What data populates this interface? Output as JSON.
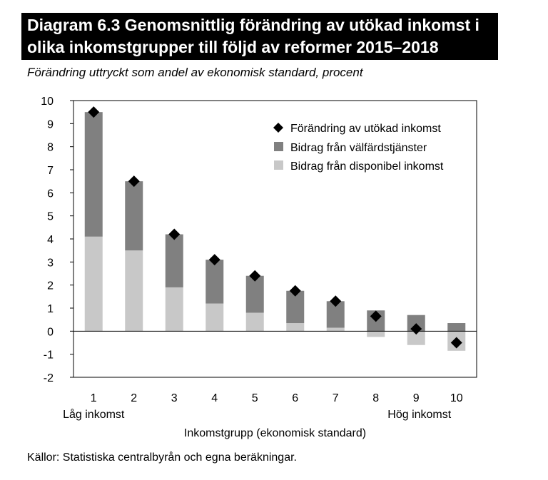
{
  "title_line1": "Diagram 6.3 Genomsnittlig förändring av utökad inkomst i",
  "title_line2": "olika inkomstgrupper till följd av reformer 2015–2018",
  "subtitle": "Förändring uttryckt som andel av ekonomisk standard, procent",
  "source": "Källor: Statistiska centralbyrån och egna beräkningar.",
  "colors": {
    "welfare": "#808080",
    "disposable": "#c8c8c8",
    "marker": "#000000",
    "title_bg": "#000000"
  },
  "chart_data": {
    "type": "bar",
    "stacked": true,
    "categories": [
      "1",
      "2",
      "3",
      "4",
      "5",
      "6",
      "7",
      "8",
      "9",
      "10"
    ],
    "category_sublabels": {
      "first": "Låg inkomst",
      "last": "Hög inkomst"
    },
    "xlabel": "Inkomstgrupp (ekonomisk standard)",
    "ylabel": "",
    "ylim": [
      -2,
      10
    ],
    "yticks": [
      -2,
      -1,
      0,
      1,
      2,
      3,
      4,
      5,
      6,
      7,
      8,
      9,
      10
    ],
    "legend_position": "top-right",
    "series": [
      {
        "name": "Bidrag från disponibel inkomst",
        "kind": "bar",
        "values": [
          4.1,
          3.5,
          1.9,
          1.2,
          0.8,
          0.35,
          0.15,
          -0.25,
          -0.6,
          -0.85
        ]
      },
      {
        "name": "Bidrag från välfärdstjänster",
        "kind": "bar",
        "values": [
          5.4,
          3.0,
          2.3,
          1.9,
          1.6,
          1.4,
          1.15,
          0.9,
          0.7,
          0.35
        ]
      },
      {
        "name": "Förändring av utökad inkomst",
        "kind": "marker",
        "values": [
          9.5,
          6.5,
          4.2,
          3.1,
          2.4,
          1.75,
          1.3,
          0.65,
          0.1,
          -0.5
        ]
      }
    ]
  }
}
